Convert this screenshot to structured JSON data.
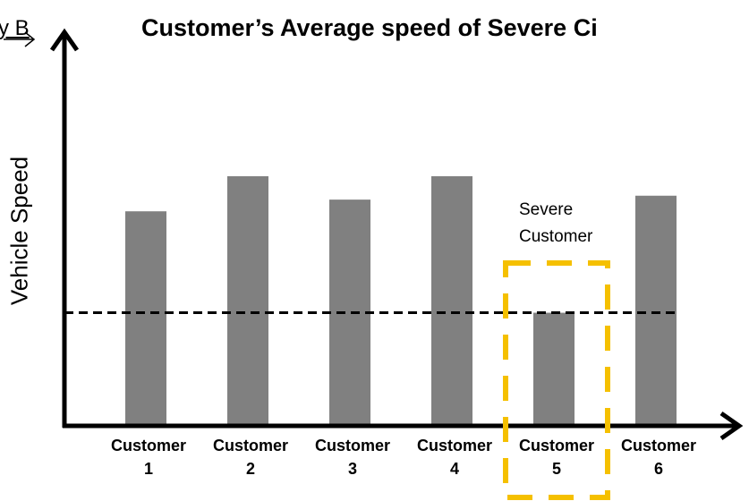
{
  "chart_data": {
    "type": "bar",
    "title": "Customer’s Average speed of Severe Ci",
    "corner_text": "y B",
    "y_label": "Vehicle Speed",
    "categories": [
      "Customer 1",
      "Customer 2",
      "Customer 3",
      "Customer 4",
      "Customer 5",
      "Customer 6"
    ],
    "values": [
      55,
      64,
      58,
      64,
      29,
      59
    ],
    "color": "#808080",
    "ylim": [
      0,
      100
    ],
    "threshold": 29,
    "highlight": {
      "category": 4,
      "label": "Severe Customer",
      "color": "#f5c000"
    }
  }
}
